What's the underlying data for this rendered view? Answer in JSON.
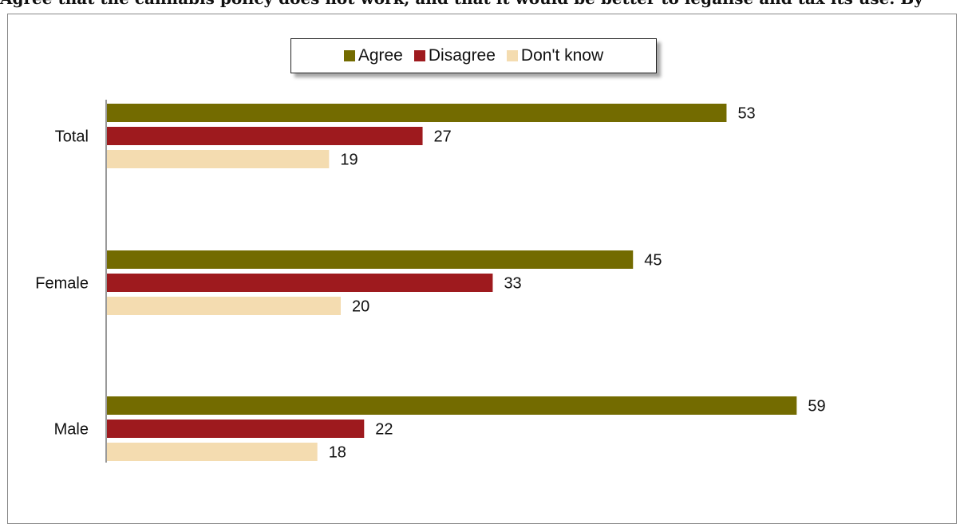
{
  "heading": "Agree that the cannabis policy does not work, and that it would be better to legalise and tax its use. By",
  "chart_data": {
    "type": "bar",
    "orientation": "horizontal",
    "title": "",
    "xlabel": "",
    "ylabel": "",
    "categories": [
      "Total",
      "Female",
      "Male"
    ],
    "series": [
      {
        "name": "Agree",
        "color": "#736b00",
        "values": [
          53,
          45,
          59
        ]
      },
      {
        "name": "Disagree",
        "color": "#9e1a1e",
        "values": [
          27,
          33,
          22
        ]
      },
      {
        "name": "Don't know",
        "color": "#f4dcb0",
        "values": [
          19,
          20,
          18
        ]
      }
    ],
    "xlim": [
      0,
      70
    ],
    "grid": false,
    "legend_position": "top-center",
    "data_labels": true
  }
}
